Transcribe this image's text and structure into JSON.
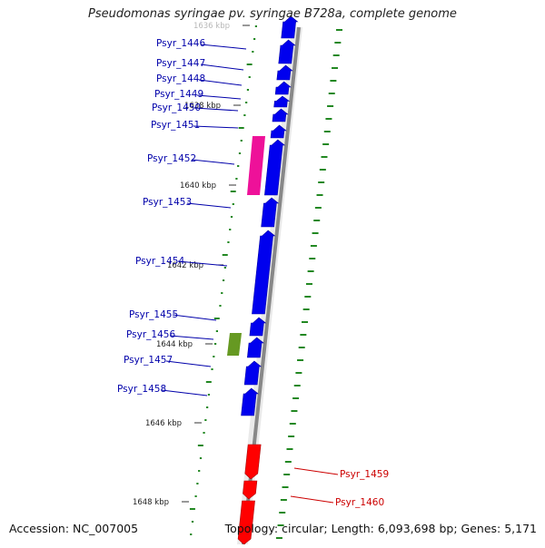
{
  "title": "Pseudomonas syringae pv. syringae B728a, complete genome",
  "footer": {
    "accession": "Accession: NC_007005",
    "summary": "Topology: circular; Length: 6,093,698 bp; Genes: 5,171"
  },
  "colors": {
    "forward_gene": "#0000ee",
    "reverse_gene": "#ff0000",
    "highlight_pink": "#ee1199",
    "highlight_olive": "#669922",
    "gc_marks": "#228822",
    "backbone": "#888888",
    "label_forward": "#0000aa",
    "label_reverse": "#cc0000"
  },
  "scale_ticks": [
    {
      "label": "1636 kbp",
      "faded": true
    },
    {
      "label": "1638 kbp"
    },
    {
      "label": "1640 kbp"
    },
    {
      "label": "1642 kbp"
    },
    {
      "label": "1644 kbp"
    },
    {
      "label": "1646 kbp"
    },
    {
      "label": "1648 kbp"
    }
  ],
  "gene_labels": [
    {
      "name": "Psyr_1446",
      "strand": "forward"
    },
    {
      "name": "Psyr_1447",
      "strand": "forward"
    },
    {
      "name": "Psyr_1448",
      "strand": "forward"
    },
    {
      "name": "Psyr_1449",
      "strand": "forward"
    },
    {
      "name": "Psyr_1450",
      "strand": "forward"
    },
    {
      "name": "Psyr_1451",
      "strand": "forward"
    },
    {
      "name": "Psyr_1452",
      "strand": "forward"
    },
    {
      "name": "Psyr_1453",
      "strand": "forward"
    },
    {
      "name": "Psyr_1454",
      "strand": "forward"
    },
    {
      "name": "Psyr_1455",
      "strand": "forward"
    },
    {
      "name": "Psyr_1456",
      "strand": "forward"
    },
    {
      "name": "Psyr_1457",
      "strand": "forward"
    },
    {
      "name": "Psyr_1458",
      "strand": "forward"
    },
    {
      "name": "Psyr_1459",
      "strand": "reverse"
    },
    {
      "name": "Psyr_1460",
      "strand": "reverse"
    }
  ]
}
